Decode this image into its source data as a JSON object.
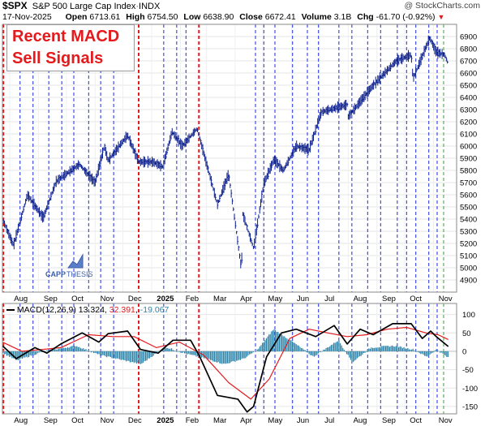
{
  "header": {
    "symbol": "$SPX",
    "name": "S&P 500 Large Cap Index",
    "exchange": "INDX",
    "watermark": "@ StockCharts.com",
    "date": "17-Nov-2025",
    "open_label": "Open",
    "open": "6713.61",
    "high_label": "High",
    "high": "6754.50",
    "low_label": "Low",
    "low": "6638.90",
    "close_label": "Close",
    "close": "6672.41",
    "volume_label": "Volume",
    "volume": "3.1B",
    "chg_label": "Chg",
    "chg": "-61.70 (-0.92%)"
  },
  "overlay": {
    "line1": "Recent MACD",
    "line2": "Sell Signals"
  },
  "logo": {
    "text_a": "CAPP",
    "text_b": "THESIS"
  },
  "macd_legend": {
    "label": "MACD(12,26,9)",
    "macd": "13.324",
    "signal": "32.391",
    "hist": "-19.067"
  },
  "colors": {
    "price": "#0a1e8c",
    "red_line": "#e41a1c",
    "blue_line": "#1a2ee0",
    "green_line": "#34a03a",
    "hist": "#2e86ab",
    "signal": "#e41a1c",
    "macd": "#000000"
  },
  "chart_data": [
    {
      "type": "line",
      "title": "S&P 500 Large Cap Index",
      "ylim": [
        4800,
        7000
      ],
      "yticks": [
        4900,
        5000,
        5100,
        5200,
        5300,
        5400,
        5500,
        5600,
        5700,
        5800,
        5900,
        6000,
        6100,
        6200,
        6300,
        6400,
        6500,
        6600,
        6700,
        6800,
        6900
      ],
      "x_month_labels": [
        "Aug",
        "Sep",
        "Oct",
        "Nov",
        "Dec",
        "2025",
        "Feb",
        "Mar",
        "Apr",
        "May",
        "Jun",
        "Jul",
        "Aug",
        "Sep",
        "Oct",
        "Nov"
      ],
      "series": [
        {
          "x": [
            "2024-07-24",
            "2024-08-05",
            "2024-08-20",
            "2024-09-06",
            "2024-09-20",
            "2024-10-15",
            "2024-11-01",
            "2024-11-11",
            "2024-11-15",
            "2024-12-06",
            "2024-12-18",
            "2025-01-02",
            "2025-01-13",
            "2025-01-23",
            "2025-02-03",
            "2025-02-19",
            "2025-03-13",
            "2025-03-25",
            "2025-04-08",
            "2025-04-09",
            "2025-04-21",
            "2025-05-02",
            "2025-05-13",
            "2025-05-23",
            "2025-06-06",
            "2025-06-20",
            "2025-07-03",
            "2025-07-31",
            "2025-08-01",
            "2025-08-28",
            "2025-09-22",
            "2025-10-08",
            "2025-10-10",
            "2025-10-28",
            "2025-11-04",
            "2025-11-13",
            "2025-11-17"
          ],
          "values": [
            5400,
            5185,
            5600,
            5410,
            5710,
            5850,
            5700,
            6000,
            5880,
            6090,
            5870,
            5870,
            5830,
            6118,
            6000,
            6144,
            5520,
            5770,
            4980,
            5450,
            5160,
            5690,
            5890,
            5800,
            6000,
            5970,
            6280,
            6340,
            6240,
            6500,
            6700,
            6750,
            6552,
            6890,
            6771,
            6750,
            6672
          ]
        }
      ]
    },
    {
      "type": "line",
      "ylim": [
        -170,
        130
      ],
      "yticks": [
        -150,
        -100,
        -50,
        0,
        50,
        100
      ],
      "x_month_labels": [
        "Aug",
        "Sep",
        "Oct",
        "Nov",
        "Dec",
        "2025",
        "Feb",
        "Mar",
        "Apr",
        "May",
        "Jun",
        "Jul",
        "Aug",
        "Sep",
        "Oct",
        "Nov"
      ],
      "series": [
        {
          "name": "MACD(12,26,9)",
          "x": [
            "2024-07-24",
            "2024-08-08",
            "2024-08-28",
            "2024-09-10",
            "2024-09-25",
            "2024-10-18",
            "2024-11-05",
            "2024-11-15",
            "2024-12-06",
            "2024-12-20",
            "2025-01-08",
            "2025-01-24",
            "2025-02-12",
            "2025-02-21",
            "2025-03-13",
            "2025-04-04",
            "2025-04-14",
            "2025-04-21",
            "2025-05-05",
            "2025-05-21",
            "2025-06-06",
            "2025-06-27",
            "2025-07-17",
            "2025-07-31",
            "2025-08-14",
            "2025-08-28",
            "2025-09-18",
            "2025-10-08",
            "2025-10-20",
            "2025-10-29",
            "2025-11-04",
            "2025-11-17"
          ],
          "values": [
            15,
            -20,
            10,
            -5,
            20,
            50,
            25,
            48,
            55,
            5,
            -5,
            30,
            30,
            -10,
            -120,
            -130,
            -165,
            -150,
            -15,
            50,
            60,
            40,
            70,
            20,
            60,
            45,
            75,
            75,
            35,
            55,
            40,
            13
          ]
        },
        {
          "name": "Signal",
          "x": [
            "2024-07-24",
            "2024-08-14",
            "2024-09-05",
            "2024-09-25",
            "2024-10-25",
            "2024-11-20",
            "2024-12-13",
            "2025-01-06",
            "2025-01-31",
            "2025-02-26",
            "2025-03-25",
            "2025-04-18",
            "2025-05-08",
            "2025-05-30",
            "2025-06-20",
            "2025-07-10",
            "2025-07-31",
            "2025-08-21",
            "2025-09-12",
            "2025-10-03",
            "2025-10-24",
            "2025-11-06",
            "2025-11-17"
          ],
          "values": [
            25,
            0,
            5,
            10,
            45,
            40,
            40,
            10,
            25,
            -10,
            -85,
            -130,
            -75,
            35,
            60,
            50,
            40,
            45,
            60,
            65,
            50,
            45,
            32
          ]
        },
        {
          "name": "Histogram",
          "x": [
            "2024-07-24",
            "2024-08-08",
            "2024-09-06",
            "2024-10-11",
            "2024-11-05",
            "2024-12-20",
            "2025-01-15",
            "2025-02-04",
            "2025-02-28",
            "2025-03-20",
            "2025-04-10",
            "2025-04-25",
            "2025-05-12",
            "2025-06-02",
            "2025-06-24",
            "2025-07-21",
            "2025-08-05",
            "2025-08-25",
            "2025-09-18",
            "2025-10-10",
            "2025-10-24",
            "2025-11-04",
            "2025-11-17"
          ],
          "values": [
            -5,
            -25,
            0,
            15,
            -10,
            -35,
            12,
            -5,
            -20,
            -35,
            -20,
            5,
            60,
            25,
            -15,
            30,
            -30,
            10,
            15,
            5,
            -15,
            5,
            -19
          ]
        }
      ]
    }
  ]
}
